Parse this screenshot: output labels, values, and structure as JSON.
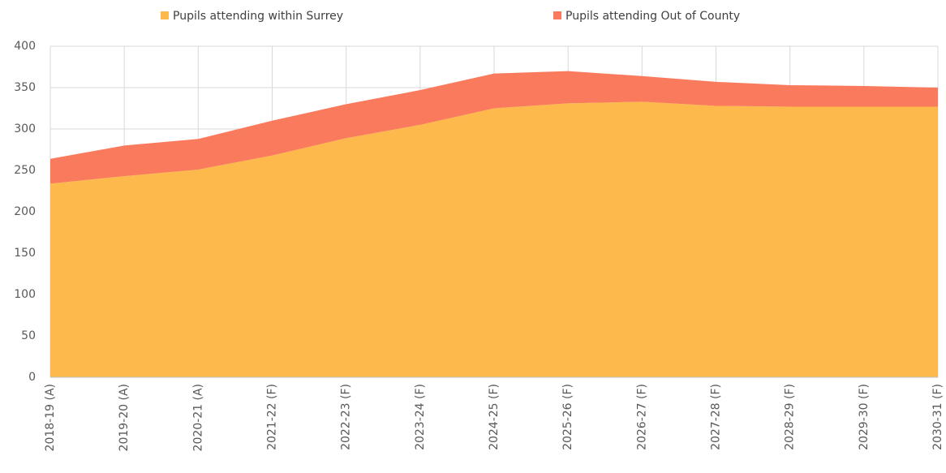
{
  "chart_data": {
    "type": "stacked_area",
    "categories": [
      "2018-19 (A)",
      "2019-20 (A)",
      "2020-21 (A)",
      "2021-22 (F)",
      "2022-23 (F)",
      "2023-24 (F)",
      "2024-25 (F)",
      "2025-26 (F)",
      "2026-27 (F)",
      "2027-28 (F)",
      "2028-29 (F)",
      "2029-30 (F)",
      "2030-31 (F)"
    ],
    "series": [
      {
        "name": "Pupils attending within Surrey",
        "color": "#fdb94b",
        "values": [
          234,
          243,
          251,
          268,
          289,
          305,
          325,
          331,
          333,
          328,
          327,
          327,
          327
        ]
      },
      {
        "name": "Pupils attending Out of County",
        "color": "#fa7a5e",
        "values": [
          30,
          37,
          37,
          42,
          41,
          42,
          42,
          39,
          31,
          29,
          26,
          25,
          23
        ]
      }
    ],
    "ylim": [
      0,
      400
    ],
    "yticks": [
      0,
      50,
      100,
      150,
      200,
      250,
      300,
      350,
      400
    ],
    "grid": true,
    "legend": "top"
  }
}
